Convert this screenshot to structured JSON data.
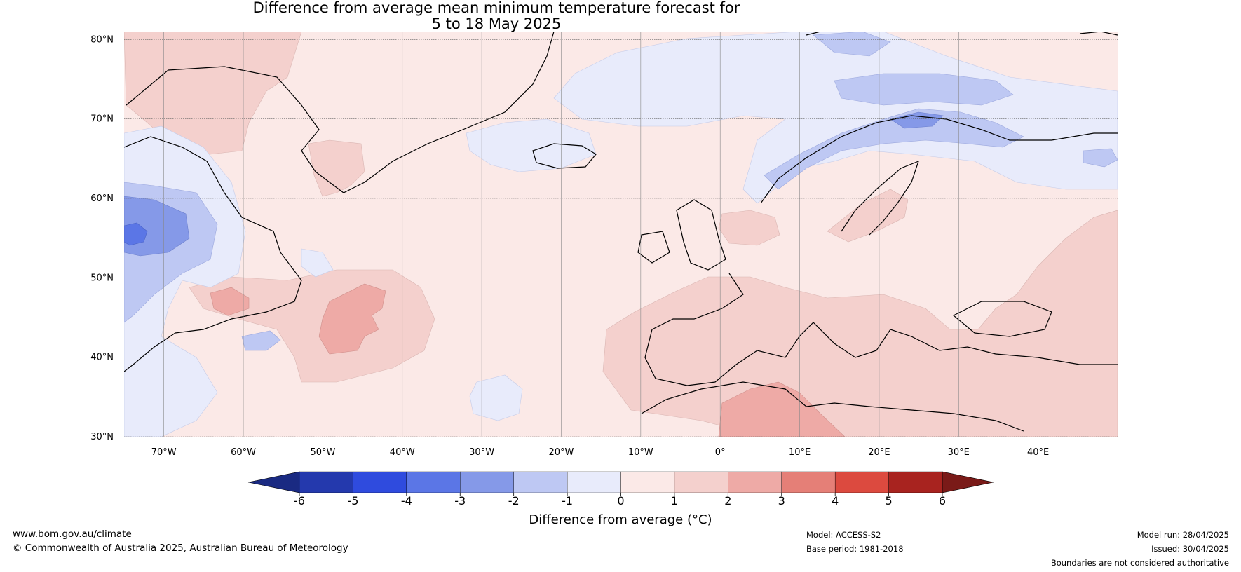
{
  "title_line1": "Difference from average mean minimum temperature forecast for",
  "title_line2": "5 to 18 May 2025",
  "map": {
    "lon_range": [
      -75,
      50
    ],
    "lat_range": [
      30,
      81
    ],
    "lat_ticks": [
      {
        "value": 80,
        "label": "80°N"
      },
      {
        "value": 70,
        "label": "70°N"
      },
      {
        "value": 60,
        "label": "60°N"
      },
      {
        "value": 50,
        "label": "50°N"
      },
      {
        "value": 40,
        "label": "40°N"
      },
      {
        "value": 30,
        "label": "30°N"
      }
    ],
    "lon_ticks": [
      {
        "value": -70,
        "label": "70°W"
      },
      {
        "value": -60,
        "label": "60°W"
      },
      {
        "value": -50,
        "label": "50°W"
      },
      {
        "value": -40,
        "label": "40°W"
      },
      {
        "value": -30,
        "label": "30°W"
      },
      {
        "value": -20,
        "label": "20°W"
      },
      {
        "value": -10,
        "label": "10°W"
      },
      {
        "value": 0,
        "label": "0°"
      },
      {
        "value": 10,
        "label": "10°E"
      },
      {
        "value": 20,
        "label": "20°E"
      },
      {
        "value": 30,
        "label": "30°E"
      },
      {
        "value": 40,
        "label": "40°E"
      }
    ],
    "grid": true,
    "background_anomaly_color": "#fbe9e7"
  },
  "colorbar": {
    "label": "Difference from average (°C)",
    "ticks": [
      "-6",
      "-5",
      "-4",
      "-3",
      "-2",
      "-1",
      "0",
      "1",
      "2",
      "3",
      "4",
      "5",
      "6"
    ],
    "colors": [
      "#2439ad",
      "#2f4bde",
      "#5b76e6",
      "#8599e8",
      "#bec8f3",
      "#e8ebfb",
      "#fbe9e7",
      "#f4d0cd",
      "#eeaaa6",
      "#e57f77",
      "#dc4a3f",
      "#a8231f"
    ],
    "under_color": "#1a2a82",
    "over_color": "#7a1a18"
  },
  "footer": {
    "website": "www.bom.gov.au/climate",
    "copyright": "© Commonwealth of Australia 2025, Australian Bureau of Meteorology",
    "model": "Model: ACCESS-S2",
    "base_period": "Base period: 1981-2018",
    "model_run": "Model run: 28/04/2025",
    "issued": "Issued: 30/04/2025",
    "disclaimer": "Boundaries are not considered authoritative"
  }
}
